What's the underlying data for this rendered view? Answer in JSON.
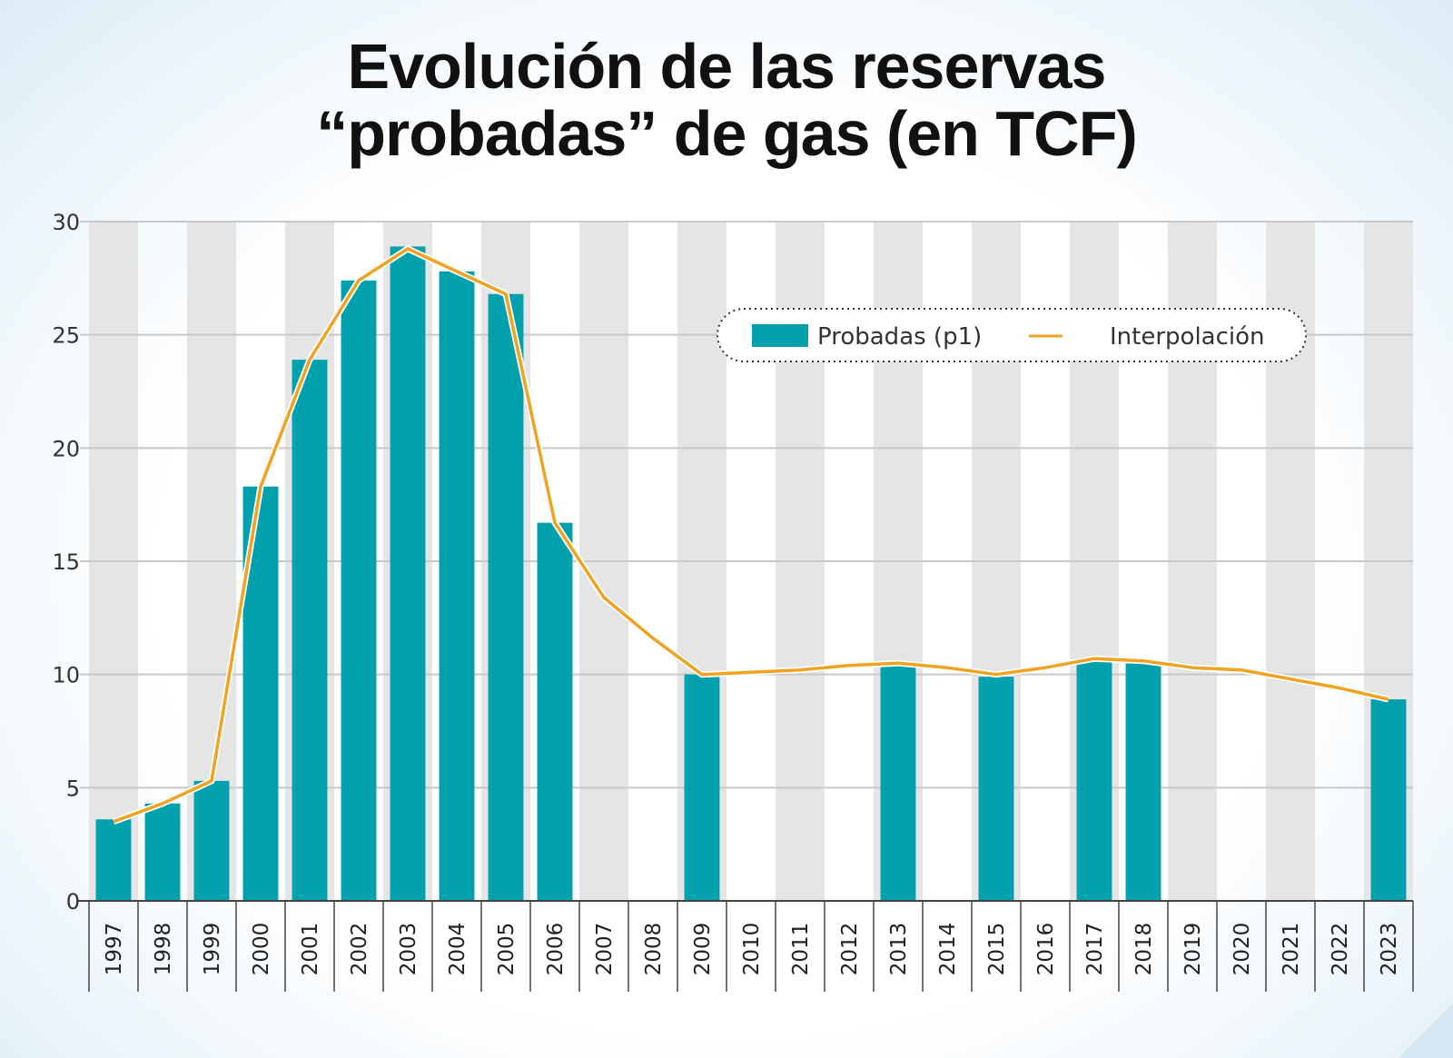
{
  "title_line1": "Evolución de las reservas",
  "title_line2": "“probadas” de gas (en TCF)",
  "colors": {
    "bar": "#00a1ad",
    "line": "#f0a320",
    "stripe": "#e5e5e5",
    "grid": "#c8c8c8"
  },
  "chart_data": {
    "type": "bar",
    "title": "Evolución de las reservas “probadas” de gas (en TCF)",
    "categories": [
      "1997",
      "1998",
      "1999",
      "2000",
      "2001",
      "2002",
      "2003",
      "2004",
      "2005",
      "2006",
      "2007",
      "2008",
      "2009",
      "2010",
      "2011",
      "2012",
      "2013",
      "2014",
      "2015",
      "2016",
      "2017",
      "2018",
      "2019",
      "2020",
      "2021",
      "2022",
      "2023"
    ],
    "ylim": [
      0,
      30
    ],
    "yticks": [
      0,
      5,
      10,
      15,
      20,
      25,
      30
    ],
    "grid": true,
    "legend_position": "top-right",
    "series": [
      {
        "name": "Probadas (p1)",
        "type": "bar",
        "values": [
          3.6,
          4.3,
          5.3,
          18.3,
          23.9,
          27.4,
          28.9,
          27.8,
          26.8,
          16.7,
          null,
          null,
          10.0,
          null,
          null,
          null,
          10.4,
          null,
          9.9,
          null,
          10.6,
          10.5,
          null,
          null,
          null,
          null,
          8.9
        ]
      },
      {
        "name": "Interpolación",
        "type": "line",
        "values": [
          3.5,
          4.3,
          5.3,
          18.3,
          23.9,
          27.4,
          28.8,
          27.8,
          26.8,
          16.7,
          13.4,
          11.6,
          10.0,
          10.1,
          10.2,
          10.4,
          10.5,
          10.3,
          10.0,
          10.3,
          10.7,
          10.6,
          10.3,
          10.2,
          9.8,
          9.4,
          8.9
        ]
      }
    ]
  }
}
